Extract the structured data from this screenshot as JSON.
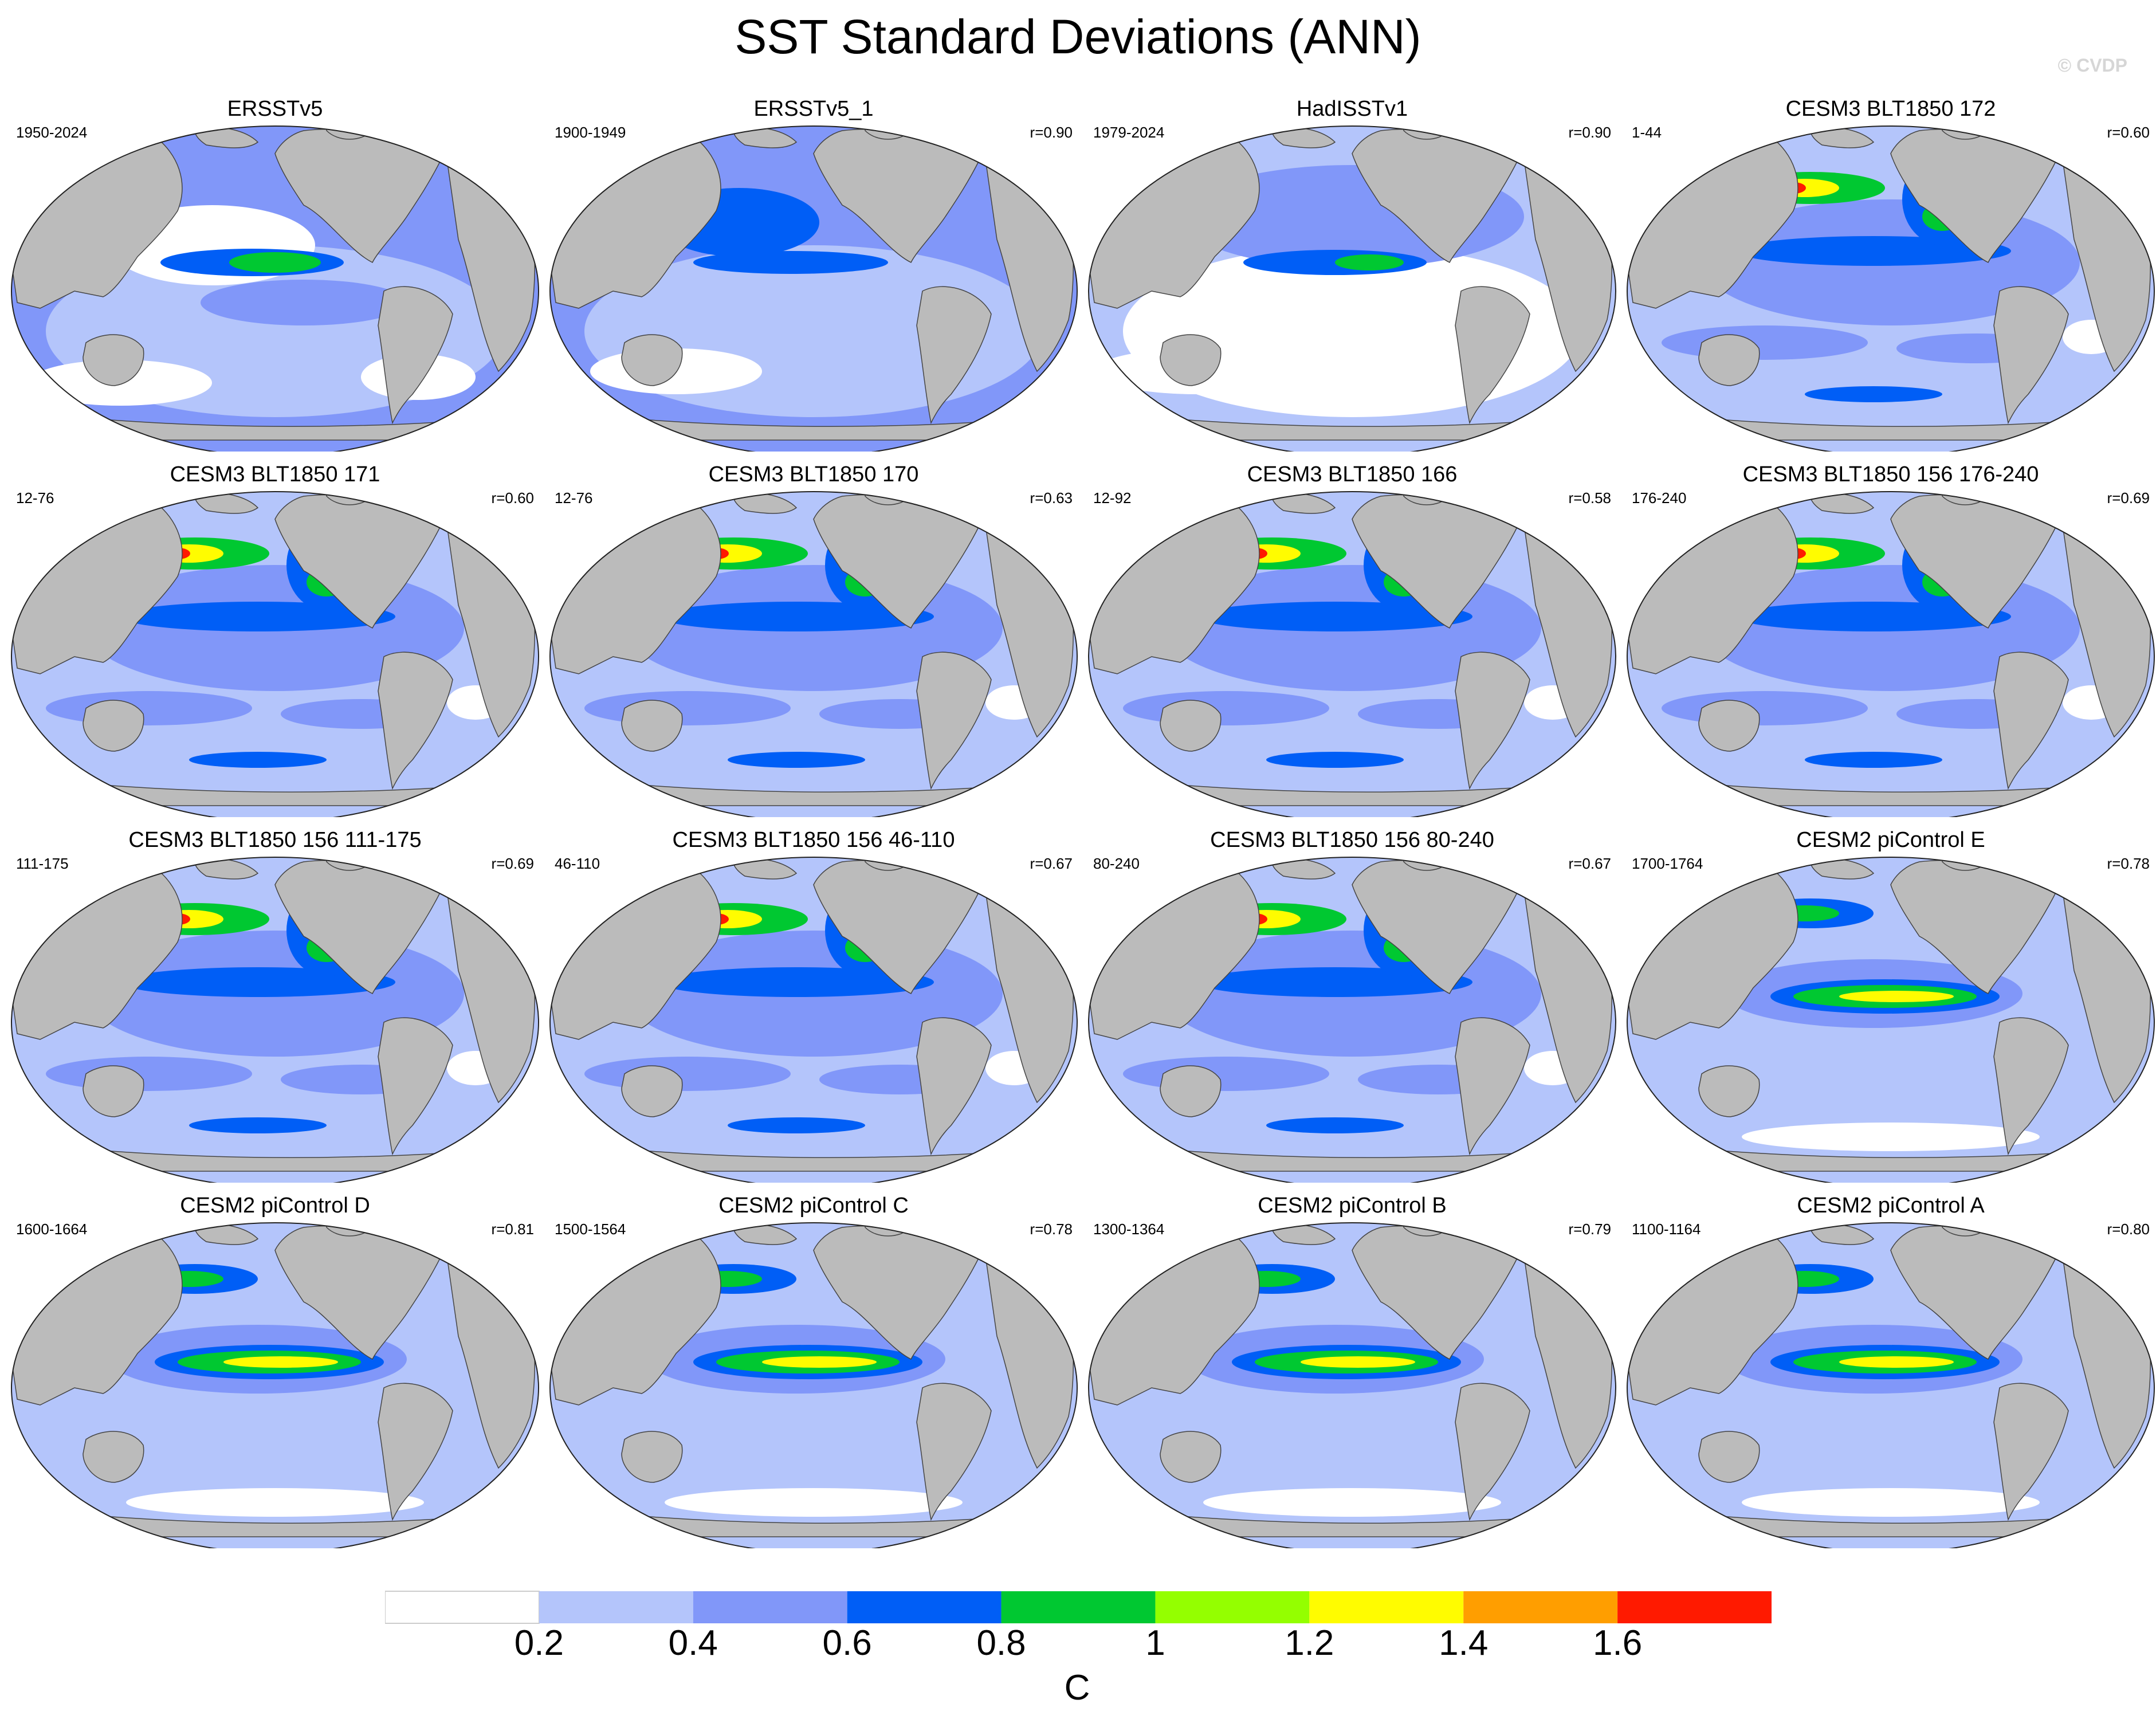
{
  "title": "SST Standard Deviations (ANN)",
  "copyright": "© CVDP",
  "panels": [
    {
      "title": "ERSSTv5",
      "period": "1950-2024",
      "corr": "",
      "pattern": "obs-erssta"
    },
    {
      "title": "ERSSTv5_1",
      "period": "1900-1949",
      "corr": "r=0.90",
      "pattern": "obs-erssb"
    },
    {
      "title": "HadISSTv1",
      "period": "1979-2024",
      "corr": "r=0.90",
      "pattern": "obs-hadi"
    },
    {
      "title": "CESM3 BLT1850 172",
      "period": "1-44",
      "corr": "r=0.60",
      "pattern": "cesm3"
    },
    {
      "title": "CESM3 BLT1850 171",
      "period": "12-76",
      "corr": "r=0.60",
      "pattern": "cesm3"
    },
    {
      "title": "CESM3 BLT1850 170",
      "period": "12-76",
      "corr": "r=0.63",
      "pattern": "cesm3"
    },
    {
      "title": "CESM3 BLT1850 166",
      "period": "12-92",
      "corr": "r=0.58",
      "pattern": "cesm3"
    },
    {
      "title": "CESM3 BLT1850 156 176-240",
      "period": "176-240",
      "corr": "r=0.69",
      "pattern": "cesm3"
    },
    {
      "title": "CESM3 BLT1850 156 111-175",
      "period": "111-175",
      "corr": "r=0.69",
      "pattern": "cesm3"
    },
    {
      "title": "CESM3 BLT1850 156 46-110",
      "period": "46-110",
      "corr": "r=0.67",
      "pattern": "cesm3"
    },
    {
      "title": "CESM3 BLT1850 156 80-240",
      "period": "80-240",
      "corr": "r=0.67",
      "pattern": "cesm3"
    },
    {
      "title": "CESM2 piControl E",
      "period": "1700-1764",
      "corr": "r=0.78",
      "pattern": "cesm2"
    },
    {
      "title": "CESM2 piControl D",
      "period": "1600-1664",
      "corr": "r=0.81",
      "pattern": "cesm2"
    },
    {
      "title": "CESM2 piControl C",
      "period": "1500-1564",
      "corr": "r=0.78",
      "pattern": "cesm2"
    },
    {
      "title": "CESM2 piControl B",
      "period": "1300-1364",
      "corr": "r=0.79",
      "pattern": "cesm2"
    },
    {
      "title": "CESM2 piControl A",
      "period": "1100-1164",
      "corr": "r=0.80",
      "pattern": "cesm2"
    }
  ],
  "colorbar": {
    "units": "C",
    "labels": [
      "0.2",
      "0.4",
      "0.6",
      "0.8",
      "1",
      "1.2",
      "1.4",
      "1.6"
    ],
    "colors": [
      "#ffffff",
      "#b4c5fb",
      "#8197f9",
      "#005ef6",
      "#00c831",
      "#94ff00",
      "#fffc00",
      "#ff9e00",
      "#ff1a00"
    ]
  },
  "land_color": "#bbbbbb",
  "chart_data": {
    "type": "heatmap",
    "title": "SST Standard Deviations (ANN)",
    "units": "C",
    "levels": [
      0.2,
      0.4,
      0.6,
      0.8,
      1.0,
      1.2,
      1.4,
      1.6
    ],
    "panels": [
      {
        "name": "ERSSTv5",
        "period": "1950-2024",
        "r": null
      },
      {
        "name": "ERSSTv5_1",
        "period": "1900-1949",
        "r": 0.9
      },
      {
        "name": "HadISSTv1",
        "period": "1979-2024",
        "r": 0.9
      },
      {
        "name": "CESM3 BLT1850 172",
        "period": "1-44",
        "r": 0.6
      },
      {
        "name": "CESM3 BLT1850 171",
        "period": "12-76",
        "r": 0.6
      },
      {
        "name": "CESM3 BLT1850 170",
        "period": "12-76",
        "r": 0.63
      },
      {
        "name": "CESM3 BLT1850 166",
        "period": "12-92",
        "r": 0.58
      },
      {
        "name": "CESM3 BLT1850 156 176-240",
        "period": "176-240",
        "r": 0.69
      },
      {
        "name": "CESM3 BLT1850 156 111-175",
        "period": "111-175",
        "r": 0.69
      },
      {
        "name": "CESM3 BLT1850 156 46-110",
        "period": "46-110",
        "r": 0.67
      },
      {
        "name": "CESM3 BLT1850 156 80-240",
        "period": "80-240",
        "r": 0.67
      },
      {
        "name": "CESM2 piControl E",
        "period": "1700-1764",
        "r": 0.78
      },
      {
        "name": "CESM2 piControl D",
        "period": "1600-1664",
        "r": 0.81
      },
      {
        "name": "CESM2 piControl C",
        "period": "1500-1564",
        "r": 0.78
      },
      {
        "name": "CESM2 piControl B",
        "period": "1300-1364",
        "r": 0.79
      },
      {
        "name": "CESM2 piControl A",
        "period": "1100-1164",
        "r": 0.8
      }
    ]
  }
}
